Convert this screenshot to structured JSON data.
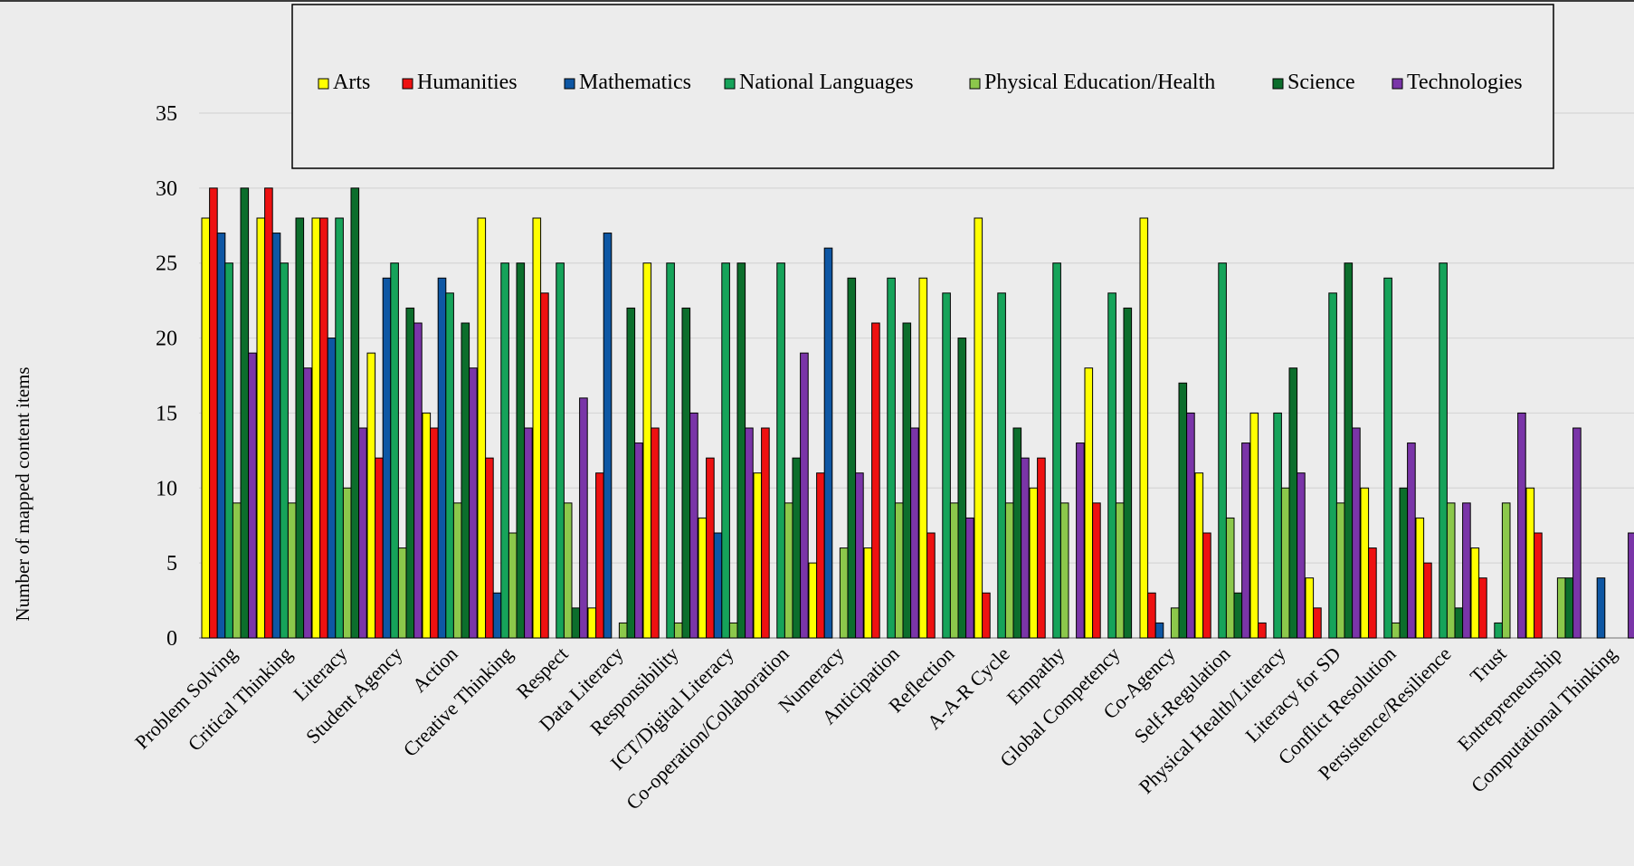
{
  "chart_data": {
    "type": "bar",
    "title": "",
    "xlabel": "",
    "ylabel": "Number of mapped content items",
    "ylim": [
      0,
      35
    ],
    "yticks": [
      0,
      5,
      10,
      15,
      20,
      25,
      30,
      35
    ],
    "grid": true,
    "legend_position": "top",
    "categories": [
      "Problem Solving",
      "Critical Thinking",
      "Literacy",
      "Student Agency",
      "Action",
      "Creative Thinking",
      "Respect",
      "Data Literacy",
      "Responsibility",
      "ICT/Digital Literacy",
      "Co-operation/Collaboration",
      "Numeracy",
      "Anticipation",
      "Reflection",
      "A-A-R Cycle",
      "Empathy",
      "Global Competency",
      "Co-Agency",
      "Self-Regulation",
      "Physical Health/Literacy",
      "Literacy for SD",
      "Conflict Resolution",
      "Persistence/Resilience",
      "Trust",
      "Entrepreneurship",
      "Computational Thinking"
    ],
    "series": [
      {
        "name": "Arts",
        "color": "#ffff00",
        "values": [
          28,
          28,
          28,
          19,
          15,
          28,
          28,
          2,
          25,
          8,
          11,
          5,
          6,
          24,
          28,
          10,
          18,
          28,
          11,
          15,
          4,
          10,
          8,
          6,
          10,
          0
        ]
      },
      {
        "name": "Humanities",
        "color": "#ee1111",
        "values": [
          30,
          30,
          28,
          12,
          14,
          12,
          23,
          11,
          14,
          12,
          14,
          11,
          21,
          7,
          3,
          12,
          9,
          3,
          7,
          1,
          2,
          6,
          5,
          4,
          7,
          0
        ]
      },
      {
        "name": "Mathematics",
        "color": "#0e57a4",
        "values": [
          27,
          27,
          20,
          24,
          24,
          3,
          0,
          27,
          0,
          7,
          0,
          26,
          0,
          0,
          0,
          0,
          0,
          1,
          0,
          0,
          0,
          0,
          0,
          0,
          0,
          4
        ]
      },
      {
        "name": "National Languages",
        "color": "#16a35a",
        "values": [
          25,
          25,
          28,
          25,
          23,
          25,
          25,
          0,
          25,
          25,
          25,
          0,
          24,
          23,
          23,
          25,
          23,
          0,
          25,
          15,
          23,
          24,
          25,
          1,
          0,
          0
        ]
      },
      {
        "name": "Physical Education/Health",
        "color": "#8cc84b",
        "values": [
          9,
          9,
          10,
          6,
          9,
          7,
          9,
          1,
          1,
          1,
          9,
          6,
          9,
          9,
          9,
          9,
          9,
          2,
          8,
          10,
          9,
          1,
          9,
          9,
          4,
          0
        ]
      },
      {
        "name": "Science",
        "color": "#0c6e2c",
        "values": [
          30,
          28,
          30,
          22,
          21,
          25,
          2,
          22,
          22,
          25,
          12,
          24,
          21,
          20,
          14,
          0,
          22,
          17,
          3,
          18,
          25,
          10,
          2,
          0,
          4,
          0
        ]
      },
      {
        "name": "Technologies",
        "color": "#7a35a8",
        "values": [
          19,
          18,
          14,
          21,
          18,
          14,
          16,
          13,
          15,
          14,
          19,
          11,
          14,
          8,
          12,
          13,
          0,
          15,
          13,
          11,
          14,
          13,
          9,
          15,
          14,
          7
        ]
      }
    ]
  }
}
